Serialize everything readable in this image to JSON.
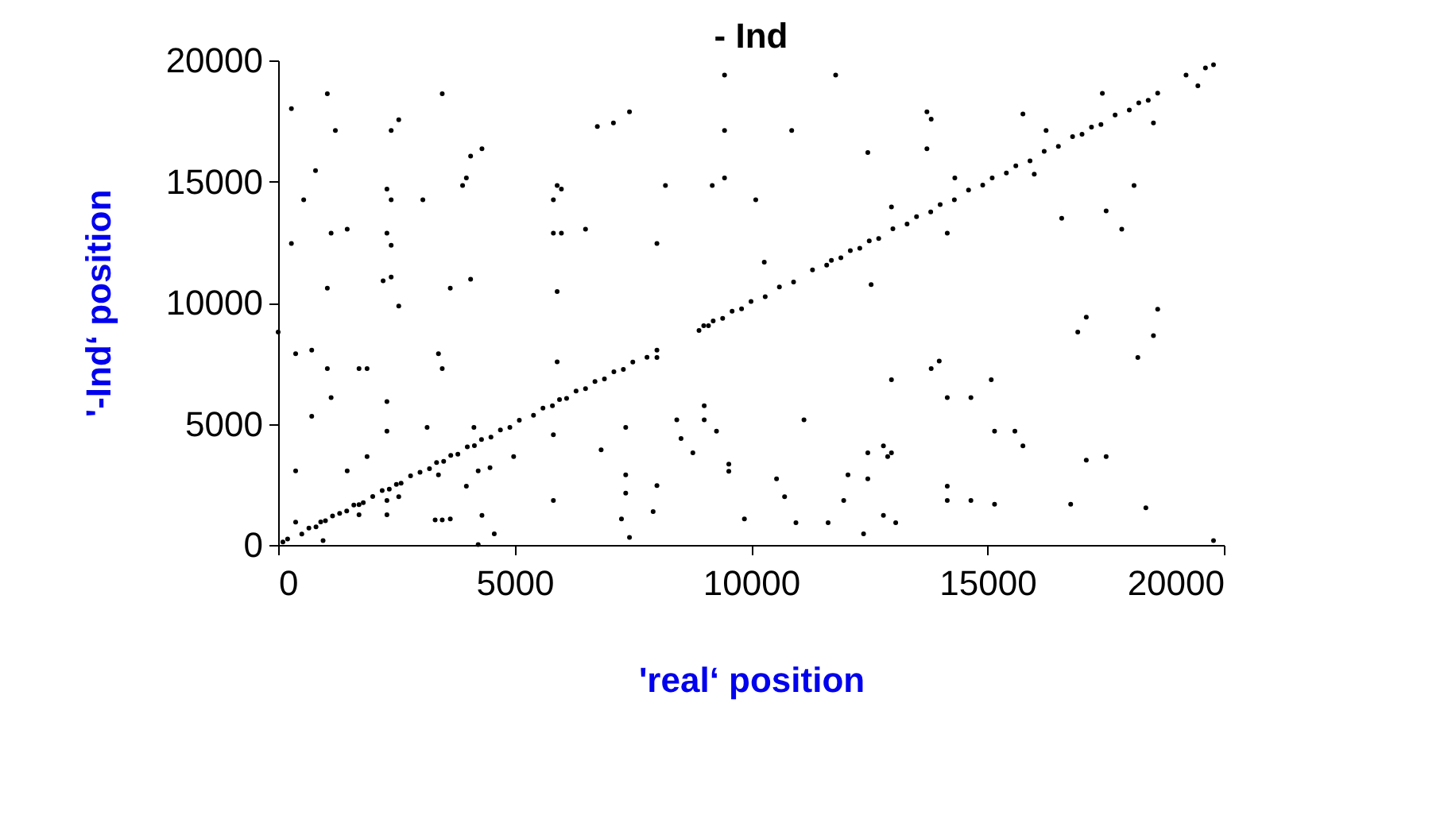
{
  "chart_data": {
    "type": "scatter",
    "title": "- Ind",
    "xlabel": "'real‘ position",
    "ylabel": "'-Ind‘ position",
    "xlim": [
      0,
      20000
    ],
    "ylim": [
      0,
      20000
    ],
    "xticks": [
      0,
      5000,
      10000,
      15000,
      20000
    ],
    "yticks": [
      0,
      5000,
      10000,
      15000,
      20000
    ],
    "grid": false,
    "legend": false,
    "marker": "circle",
    "series": [
      {
        "color": "#000000",
        "x": [
          280,
          1040,
          1210,
          790,
          540,
          280,
          1120,
          1460,
          1040,
          2300,
          2390,
          2390,
          2550,
          2300,
          2390,
          2390,
          2220,
          2550,
          3060,
          3470,
          3640,
          3900,
          3980,
          4070,
          4310,
          4070,
          5820,
          5900,
          5990,
          5820,
          5990,
          6500,
          5900,
          6750,
          7090,
          7430,
          8010,
          8190,
          9180,
          9440,
          9440,
          9440,
          10100,
          11790,
          10860,
          12470,
          13720,
          13810,
          13720,
          10280,
          12540,
          12970,
          14150,
          14310,
          15750,
          16240,
          15990,
          16570,
          17510,
          17840,
          18100,
          17430,
          18510,
          18600,
          19200,
          19450,
          19610,
          19780,
          0,
          370,
          710,
          1040,
          1120,
          710,
          1710,
          1880,
          2300,
          2300,
          1880,
          1460,
          370,
          370,
          950,
          1710,
          1710,
          2300,
          2300,
          2550,
          3150,
          3390,
          3470,
          3390,
          3320,
          3470,
          3640,
          3980,
          4230,
          4140,
          4310,
          4230,
          4570,
          4480,
          4980,
          5900,
          5820,
          5820,
          6830,
          7350,
          7350,
          7350,
          7260,
          7430,
          8010,
          8010,
          7930,
          8010,
          8430,
          8520,
          8770,
          9010,
          9010,
          9270,
          9530,
          9530,
          9860,
          11120,
          10540,
          10710,
          10950,
          11630,
          11960,
          12050,
          12470,
          12470,
          12380,
          12800,
          12970,
          12890,
          12800,
          13060,
          12970,
          13810,
          13980,
          14150,
          14650,
          15080,
          14150,
          14150,
          14650,
          15150,
          15150,
          15580,
          15750,
          16760,
          16910,
          17090,
          17090,
          17510,
          18180,
          18510,
          18350,
          19780,
          100,
          200,
          500,
          650,
          800,
          900,
          1000,
          1150,
          1300,
          1450,
          1600,
          1800,
          2000,
          2200,
          2350,
          2500,
          2600,
          2800,
          3000,
          3200,
          3350,
          3500,
          3650,
          3800,
          4000,
          4150,
          4300,
          4500,
          4700,
          4900,
          5100,
          5400,
          5600,
          5800,
          5950,
          6100,
          6300,
          6500,
          6700,
          6900,
          7100,
          7300,
          7500,
          7800,
          8900,
          9000,
          9100,
          9200,
          9400,
          9600,
          9800,
          10000,
          10300,
          10600,
          10900,
          11300,
          11600,
          11700,
          11900,
          12100,
          12300,
          12500,
          12700,
          13000,
          13300,
          13500,
          13800,
          14000,
          14300,
          14600,
          14900,
          15100,
          15400,
          15600,
          15900,
          16200,
          16500,
          16800,
          17000,
          17200,
          17400,
          17700,
          18000,
          18200,
          18400,
          18600
        ],
        "values": [
          18010,
          18620,
          17110,
          15450,
          14250,
          12440,
          12870,
          13030,
          10600,
          14690,
          14250,
          17110,
          17550,
          12870,
          12370,
          11060,
          10900,
          9860,
          14250,
          18620,
          10600,
          14840,
          15150,
          16050,
          16350,
          10970,
          14250,
          14840,
          14690,
          12870,
          12870,
          13030,
          10460,
          17270,
          17420,
          17880,
          12440,
          14840,
          14840,
          15150,
          17110,
          19390,
          14250,
          19390,
          17110,
          16200,
          17880,
          17570,
          16350,
          11670,
          10750,
          13950,
          12870,
          15150,
          17790,
          17110,
          15300,
          13480,
          13790,
          13030,
          14840,
          18640,
          17420,
          9730,
          19390,
          18950,
          19690,
          19820,
          8790,
          7890,
          8040,
          7280,
          6080,
          5310,
          7280,
          7280,
          5920,
          4700,
          3650,
          3060,
          3060,
          940,
          180,
          1660,
          1250,
          1840,
          1250,
          1990,
          4850,
          7890,
          7280,
          2890,
          1030,
          1030,
          1070,
          2430,
          3060,
          4850,
          1220,
          20,
          460,
          3190,
          3650,
          7560,
          4550,
          1840,
          3930,
          4850,
          2890,
          2140,
          1070,
          310,
          8040,
          7740,
          1380,
          2450,
          5160,
          4390,
          3800,
          5750,
          5160,
          4700,
          3340,
          3040,
          1070,
          5160,
          2730,
          1990,
          920,
          920,
          1840,
          2890,
          3800,
          2730,
          460,
          4090,
          3800,
          3650,
          1220,
          920,
          6820,
          7280,
          7590,
          6080,
          6080,
          6820,
          2430,
          1840,
          1840,
          1680,
          4700,
          4700,
          4090,
          1680,
          8790,
          9400,
          3500,
          3650,
          7740,
          8640,
          1530,
          180,
          120,
          250,
          450,
          700,
          750,
          950,
          1000,
          1200,
          1300,
          1400,
          1650,
          1750,
          2000,
          2250,
          2300,
          2500,
          2550,
          2850,
          3000,
          3150,
          3400,
          3450,
          3700,
          3750,
          4050,
          4100,
          4350,
          4450,
          4750,
          4850,
          5150,
          5350,
          5650,
          5750,
          6000,
          6050,
          6350,
          6450,
          6750,
          6850,
          7150,
          7250,
          7550,
          7750,
          8850,
          9050,
          9050,
          9250,
          9350,
          9650,
          9750,
          10050,
          10250,
          10650,
          10850,
          11350,
          11550,
          11750,
          11850,
          12150,
          12250,
          12550,
          12650,
          13050,
          13250,
          13550,
          13750,
          14050,
          14250,
          14650,
          14850,
          15150,
          15350,
          15650,
          15850,
          16250,
          16450,
          16850,
          16950,
          17250,
          17350,
          17750,
          17950,
          18250,
          18350,
          18650
        ]
      }
    ]
  }
}
